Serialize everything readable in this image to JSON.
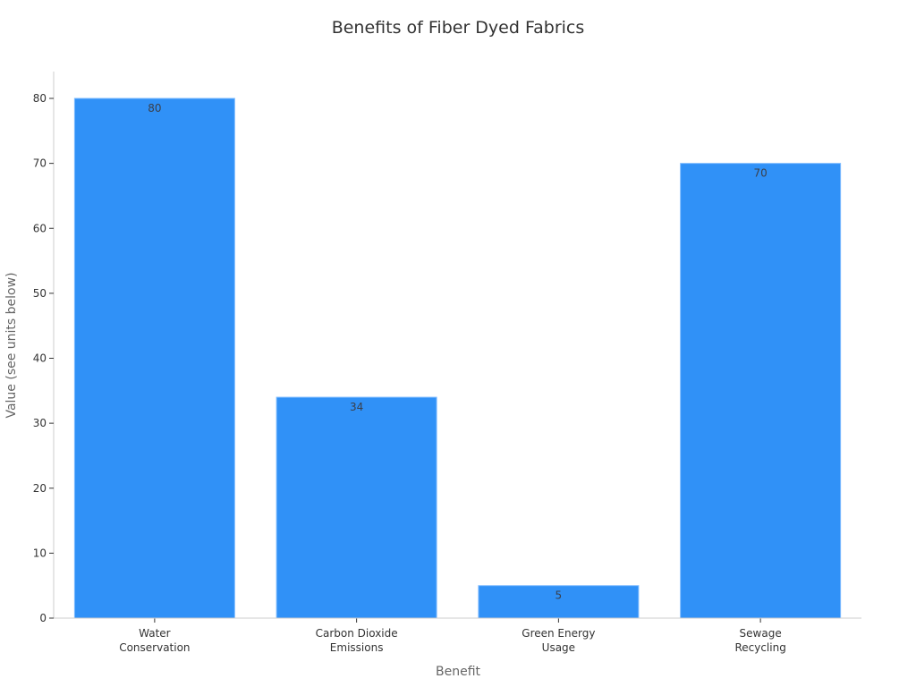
{
  "chart_data": {
    "type": "bar",
    "title": "Benefits of Fiber Dyed Fabrics",
    "xlabel": "Benefit",
    "ylabel": "Value (see units below)",
    "categories": [
      "Water Conservation",
      "Carbon Dioxide Emissions",
      "Green Energy Usage",
      "Sewage Recycling"
    ],
    "category_lines": [
      [
        "Water",
        "Conservation"
      ],
      [
        "Carbon Dioxide",
        "Emissions"
      ],
      [
        "Green Energy",
        "Usage"
      ],
      [
        "Sewage",
        "Recycling"
      ]
    ],
    "values": [
      80,
      34,
      5,
      70
    ],
    "data_labels": [
      "80",
      "34",
      "5",
      "70"
    ],
    "ylim": [
      0,
      84
    ],
    "yticks": [
      0,
      10,
      20,
      30,
      40,
      50,
      60,
      70,
      80
    ],
    "grid": false,
    "legend": null,
    "bar_color": "#3091f7"
  }
}
